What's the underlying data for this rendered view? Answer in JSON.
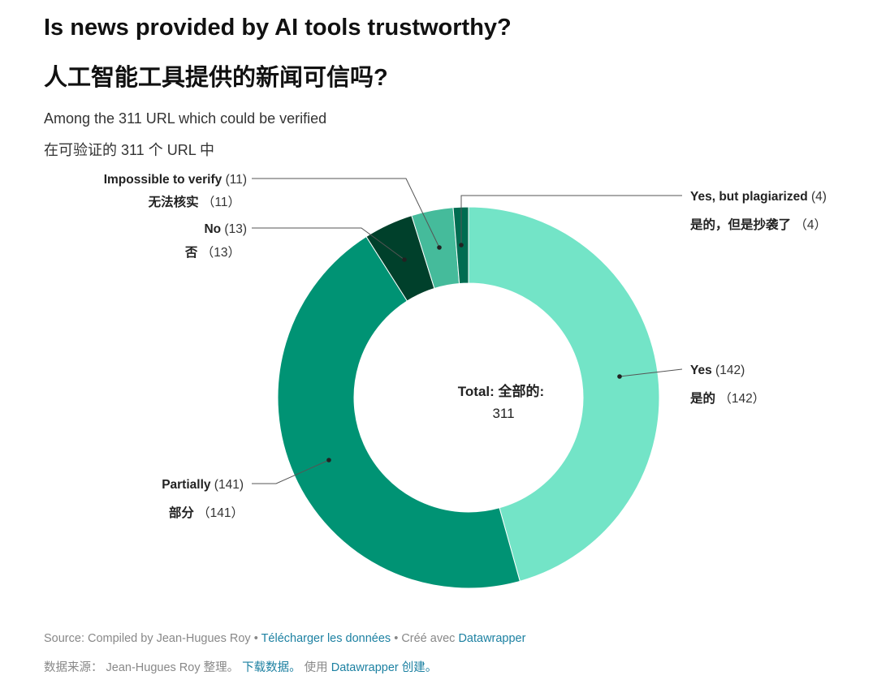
{
  "header": {
    "title_en": "Is news provided by AI tools trustworthy?",
    "title_zh": "人工智能工具提供的新闻可信吗?",
    "subtitle_en": "Among the 311 URL which could be verified",
    "subtitle_zh": "在可验证的 311 个 URL 中"
  },
  "chart_data": {
    "type": "pie",
    "donut": true,
    "center_label": {
      "title": "Total:  全部的:",
      "value": "311"
    },
    "slices": [
      {
        "label": "Yes",
        "label_zh": "是的",
        "value": 142,
        "color": "#73e4c7"
      },
      {
        "label": "Partially",
        "label_zh": "部分",
        "value": 141,
        "color": "#009374"
      },
      {
        "label": "No",
        "label_zh": "否",
        "value": 13,
        "color": "#00402b"
      },
      {
        "label": "Impossible to verify",
        "label_zh": "无法核实",
        "value": 11,
        "color": "#45bb9b"
      },
      {
        "label": "Yes, but plagiarized",
        "label_zh": "是的，但是抄袭了",
        "value": 4,
        "color": "#006c51"
      }
    ]
  },
  "footer": {
    "source_en": "Source: Compiled by Jean-Hugues Roy",
    "sep": " • ",
    "download_en": "Télécharger les données",
    "created_en": "Créé avec ",
    "datawrapper": "Datawrapper",
    "source_zh": "数据来源： Jean-Hugues Roy 整理。 ",
    "download_zh": "下载数据。",
    "created_zh": " 使用 ",
    "datawrapper_zh": "Datawrapper 创建。"
  }
}
